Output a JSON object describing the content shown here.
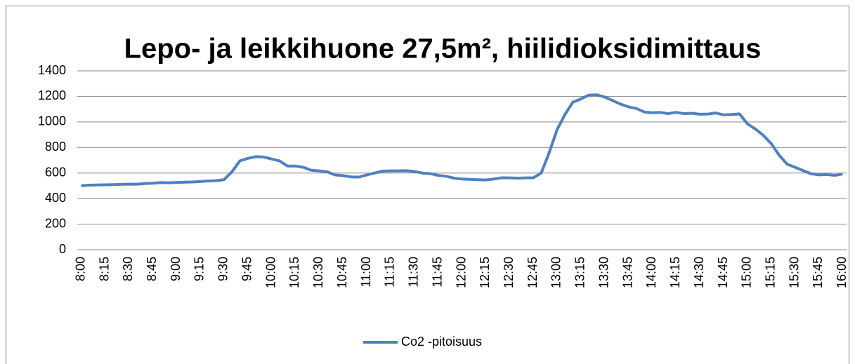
{
  "chart_data": {
    "type": "line",
    "title": "Lepo- ja leikkihuone 27,5m², hiilidioksidimittaus",
    "categories": [
      "8:00",
      null,
      null,
      "8:15",
      null,
      null,
      "8:30",
      null,
      null,
      "8:45",
      null,
      null,
      "9:00",
      null,
      null,
      "9:15",
      null,
      null,
      "9:30",
      null,
      null,
      "9:45",
      null,
      null,
      "10:00",
      null,
      null,
      "10:15",
      null,
      null,
      "10:30",
      null,
      null,
      "10:45",
      null,
      null,
      "11:00",
      null,
      null,
      "11:15",
      null,
      null,
      "11:30",
      null,
      null,
      "11:45",
      null,
      null,
      "12:00",
      null,
      null,
      "12:15",
      null,
      null,
      "12:30",
      null,
      null,
      "12:45",
      null,
      null,
      "13:00",
      null,
      null,
      "13:15",
      null,
      null,
      "13:30",
      null,
      null,
      "13:45",
      null,
      null,
      "14:00",
      null,
      null,
      "14:15",
      null,
      null,
      "14:30",
      null,
      null,
      "14:45",
      null,
      null,
      "15:00",
      null,
      null,
      "15:15",
      null,
      null,
      "15:30",
      null,
      null,
      "15:45",
      null,
      null,
      "16:00"
    ],
    "series": [
      {
        "name": "Co2 -pitoisuus",
        "color": "#4f81bd",
        "values": [
          500,
          505,
          507,
          508,
          509,
          511,
          513,
          513,
          517,
          520,
          525,
          524,
          526,
          528,
          530,
          533,
          538,
          540,
          548,
          610,
          695,
          715,
          728,
          725,
          710,
          695,
          655,
          655,
          645,
          622,
          617,
          610,
          585,
          580,
          570,
          568,
          585,
          600,
          615,
          617,
          617,
          618,
          612,
          600,
          595,
          582,
          575,
          560,
          553,
          550,
          548,
          546,
          553,
          563,
          562,
          560,
          562,
          563,
          600,
          760,
          940,
          1060,
          1155,
          1180,
          1210,
          1212,
          1195,
          1168,
          1140,
          1118,
          1105,
          1078,
          1072,
          1075,
          1065,
          1075,
          1065,
          1068,
          1060,
          1062,
          1070,
          1055,
          1058,
          1063,
          985,
          945,
          895,
          830,
          740,
          670,
          645,
          620,
          595,
          585,
          588,
          582,
          592
        ]
      }
    ],
    "ylim": [
      0,
      1400
    ],
    "yticks": [
      0,
      200,
      400,
      600,
      800,
      1000,
      1200,
      1400
    ],
    "grid": true,
    "legend": "bottom"
  }
}
